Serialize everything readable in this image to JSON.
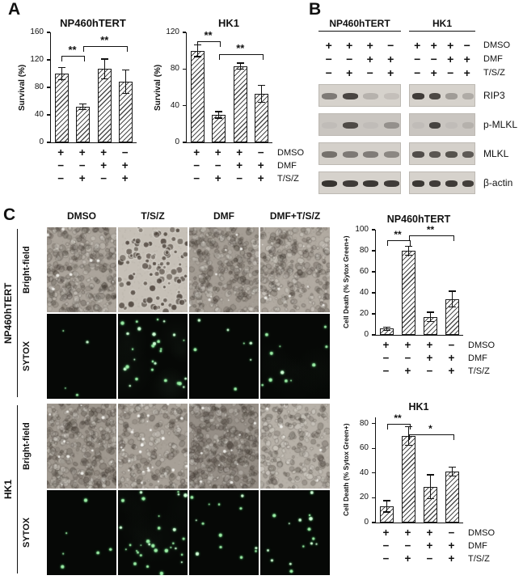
{
  "panel_labels": {
    "a": "A",
    "b": "B",
    "c": "C"
  },
  "treatment_rows": [
    "DMSO",
    "DMF",
    "T/S/Z"
  ],
  "chart_data": [
    {
      "id": "survival-np460htert",
      "type": "bar",
      "title": "NP460hTERT",
      "ylabel": "Survival (%)",
      "ylim": [
        0,
        160
      ],
      "yticks": [
        0,
        40,
        80,
        120,
        160
      ],
      "categories": [
        "DMSO",
        "T/S/Z",
        "DMF",
        "DMF+T/S/Z"
      ],
      "values": [
        100,
        52,
        107,
        88
      ],
      "errors": [
        10,
        5,
        15,
        18
      ],
      "significance": [
        {
          "from": 0,
          "to": 1,
          "label": "**",
          "y": 126
        },
        {
          "from": 1,
          "to": 3,
          "label": "**",
          "y": 140
        }
      ],
      "conditions": {
        "row_labels": [
          "DMSO",
          "DMF",
          "T/S/Z"
        ],
        "matrix": [
          [
            "+",
            "+",
            "+",
            "−"
          ],
          [
            "−",
            "−",
            "+",
            "+"
          ],
          [
            "−",
            "+",
            "−",
            "+"
          ]
        ],
        "show_row_labels": false
      },
      "grid": false,
      "bar_style": "diagonal-hatch"
    },
    {
      "id": "survival-hk1",
      "type": "bar",
      "title": "HK1",
      "ylabel": "Survival (%)",
      "ylim": [
        0,
        120
      ],
      "yticks": [
        0,
        40,
        80,
        120
      ],
      "categories": [
        "DMSO",
        "T/S/Z",
        "DMF",
        "DMF+T/S/Z"
      ],
      "values": [
        100,
        30,
        83,
        53
      ],
      "errors": [
        7,
        4,
        4,
        10
      ],
      "significance": [
        {
          "from": 0,
          "to": 1,
          "label": "**",
          "y": 110
        },
        {
          "from": 1,
          "to": 3,
          "label": "**",
          "y": 96
        }
      ],
      "conditions": {
        "row_labels": [
          "DMSO",
          "DMF",
          "T/S/Z"
        ],
        "matrix": [
          [
            "+",
            "+",
            "+",
            "−"
          ],
          [
            "−",
            "−",
            "+",
            "+"
          ],
          [
            "−",
            "+",
            "−",
            "+"
          ]
        ],
        "show_row_labels": true
      },
      "grid": false,
      "bar_style": "diagonal-hatch"
    },
    {
      "id": "celldeath-np460htert",
      "type": "bar",
      "title": "NP460hTERT",
      "ylabel": "Cell Death (% Sytox Green+)",
      "ylim": [
        0,
        100
      ],
      "yticks": [
        0,
        20,
        40,
        60,
        80,
        100
      ],
      "categories": [
        "DMSO",
        "T/S/Z",
        "DMF",
        "DMF+T/S/Z"
      ],
      "values": [
        6,
        80,
        17,
        34
      ],
      "errors": [
        2,
        5,
        5,
        8
      ],
      "significance": [
        {
          "from": 0,
          "to": 1,
          "label": "**",
          "y": 90
        },
        {
          "from": 1,
          "to": 3,
          "label": "**",
          "y": 95
        }
      ],
      "conditions": {
        "row_labels": [
          "DMSO",
          "DMF",
          "T/S/Z"
        ],
        "matrix": [
          [
            "+",
            "+",
            "+",
            "−"
          ],
          [
            "−",
            "−",
            "+",
            "+"
          ],
          [
            "−",
            "+",
            "−",
            "+"
          ]
        ],
        "show_row_labels": true
      },
      "grid": false,
      "bar_style": "diagonal-hatch"
    },
    {
      "id": "celldeath-hk1",
      "type": "bar",
      "title": "HK1",
      "ylabel": "Cell Death (% Sytox Green+)",
      "ylim": [
        0,
        85
      ],
      "yticks": [
        0,
        20,
        40,
        60,
        80
      ],
      "categories": [
        "DMSO",
        "T/S/Z",
        "DMF",
        "DMF+T/S/Z"
      ],
      "values": [
        13,
        70,
        29,
        41
      ],
      "errors": [
        5,
        8,
        10,
        4
      ],
      "significance": [
        {
          "from": 0,
          "to": 1,
          "label": "**",
          "y": 80
        },
        {
          "from": 1,
          "to": 3,
          "label": "*",
          "y": 71
        }
      ],
      "conditions": {
        "row_labels": [
          "DMSO",
          "DMF",
          "T/S/Z"
        ],
        "matrix": [
          [
            "+",
            "+",
            "+",
            "−"
          ],
          [
            "−",
            "−",
            "+",
            "+"
          ],
          [
            "−",
            "+",
            "−",
            "+"
          ]
        ],
        "show_row_labels": true
      },
      "grid": false,
      "bar_style": "diagonal-hatch"
    }
  ],
  "western_blot": {
    "groups": [
      "NP460hTERT",
      "HK1"
    ],
    "condition_rows": [
      {
        "label": "DMSO",
        "signs": [
          [
            "+",
            "+",
            "+",
            "−"
          ],
          [
            "+",
            "+",
            "+",
            "−"
          ]
        ]
      },
      {
        "label": "DMF",
        "signs": [
          [
            "−",
            "−",
            "+",
            "+"
          ],
          [
            "−",
            "−",
            "+",
            "+"
          ]
        ]
      },
      {
        "label": "T/S/Z",
        "signs": [
          [
            "−",
            "+",
            "−",
            "+"
          ],
          [
            "−",
            "+",
            "−",
            "+"
          ]
        ]
      }
    ],
    "blots": [
      {
        "label": "RIP3",
        "bg": "#d6d2cc",
        "bands": [
          [
            0.5,
            0.8,
            0.18,
            0.1
          ],
          [
            0.85,
            0.78,
            0.3,
            0.22
          ]
        ]
      },
      {
        "label": "p-MLKL",
        "bg": "#c9c5c0",
        "bands": [
          [
            0.05,
            0.75,
            0.05,
            0.32
          ],
          [
            0.05,
            0.8,
            0.05,
            0.12
          ]
        ]
      },
      {
        "label": "MLKL",
        "bg": "#d4d0ca",
        "bands": [
          [
            0.55,
            0.5,
            0.48,
            0.42
          ],
          [
            0.75,
            0.7,
            0.72,
            0.68
          ]
        ]
      },
      {
        "label": "β-actin",
        "bg": "#d6d2cc",
        "bands": [
          [
            0.9,
            0.86,
            0.88,
            0.85
          ],
          [
            0.88,
            0.85,
            0.86,
            0.84
          ]
        ]
      }
    ]
  },
  "microscopy": {
    "column_headers": [
      "DMSO",
      "T/S/Z",
      "DMF",
      "DMF+T/S/Z"
    ],
    "groups": [
      {
        "cell_line": "NP460hTERT",
        "row_labels": [
          "Bright-field",
          "SYTOX"
        ]
      },
      {
        "cell_line": "HK1",
        "row_labels": [
          "Bright-field",
          "SYTOX"
        ]
      }
    ],
    "images": [
      [
        {
          "mode": "brightfield",
          "density": 340,
          "base": "#aba49b",
          "morphology": "spread",
          "specks": 8
        },
        {
          "mode": "brightfield",
          "density": 95,
          "base": "#c6c0b7",
          "morphology": "round",
          "specks": 4
        },
        {
          "mode": "brightfield",
          "density": 330,
          "base": "#a49d94",
          "morphology": "spread",
          "specks": 8
        },
        {
          "mode": "brightfield",
          "density": 300,
          "base": "#b1aaa1",
          "morphology": "spread",
          "specks": 8
        }
      ],
      [
        {
          "mode": "sytox",
          "dots": 4,
          "haze": 0
        },
        {
          "mode": "sytox",
          "dots": 28,
          "haze": 0.05
        },
        {
          "mode": "sytox",
          "dots": 7,
          "haze": 0
        },
        {
          "mode": "sytox",
          "dots": 11,
          "haze": 0.02
        }
      ],
      [
        {
          "mode": "brightfield",
          "density": 370,
          "base": "#9e978e",
          "morphology": "spread",
          "specks": 12
        },
        {
          "mode": "brightfield",
          "density": 240,
          "base": "#a7a097",
          "morphology": "spread",
          "specks": 26
        },
        {
          "mode": "brightfield",
          "density": 390,
          "base": "#958e86",
          "morphology": "spread",
          "specks": 10
        },
        {
          "mode": "brightfield",
          "density": 220,
          "base": "#b7b1a8",
          "morphology": "spread",
          "specks": 6
        }
      ],
      [
        {
          "mode": "sytox",
          "dots": 6,
          "haze": 0
        },
        {
          "mode": "sytox",
          "dots": 32,
          "haze": 0.03
        },
        {
          "mode": "sytox",
          "dots": 13,
          "haze": 0
        },
        {
          "mode": "sytox",
          "dots": 15,
          "haze": 0
        }
      ]
    ]
  }
}
